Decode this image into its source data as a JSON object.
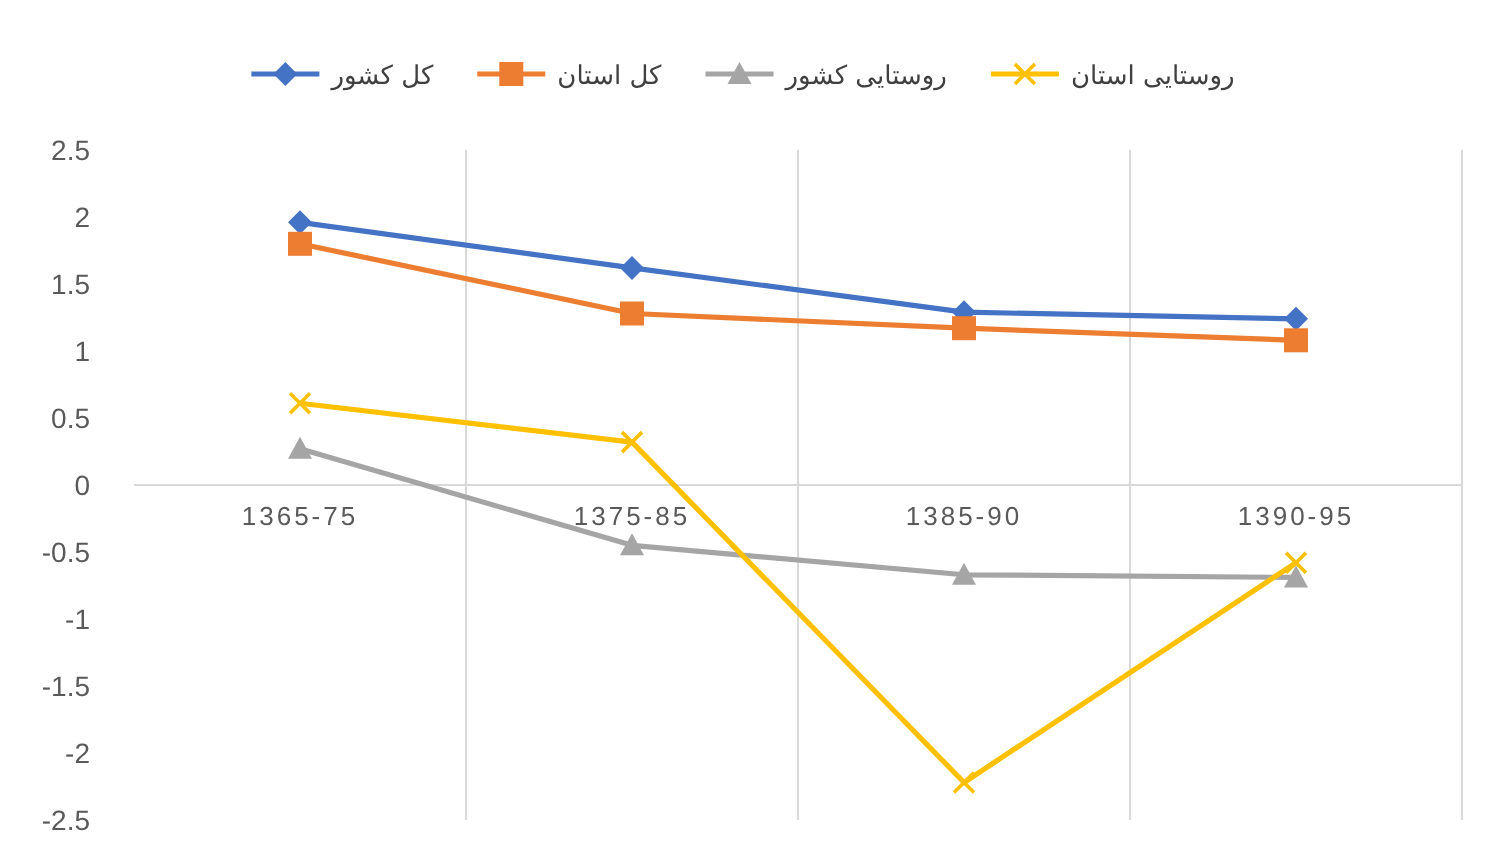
{
  "chart_data": {
    "type": "line",
    "categories": [
      "1365-75",
      "1375-85",
      "1385-90",
      "1390-95"
    ],
    "series": [
      {
        "name": "کل کشور",
        "color": "#4472c4",
        "marker": "diamond",
        "values": [
          1.96,
          1.62,
          1.29,
          1.24
        ]
      },
      {
        "name": "کل استان",
        "color": "#ed7d31",
        "marker": "square",
        "values": [
          1.8,
          1.28,
          1.17,
          1.08
        ]
      },
      {
        "name": "روستایی کشور",
        "color": "#a5a5a5",
        "marker": "triangle",
        "values": [
          0.27,
          -0.45,
          -0.67,
          -0.69
        ]
      },
      {
        "name": "روستایی استان",
        "color": "#ffc000",
        "marker": "cross",
        "values": [
          0.61,
          0.32,
          -2.22,
          -0.58
        ]
      }
    ],
    "ylim": [
      -2.5,
      2.5
    ],
    "yticks": [
      -2.5,
      -2,
      -1.5,
      -1,
      -0.5,
      0,
      0.5,
      1,
      1.5,
      2,
      2.5
    ],
    "grid": "x",
    "legend": "top",
    "line_style": "solid"
  }
}
